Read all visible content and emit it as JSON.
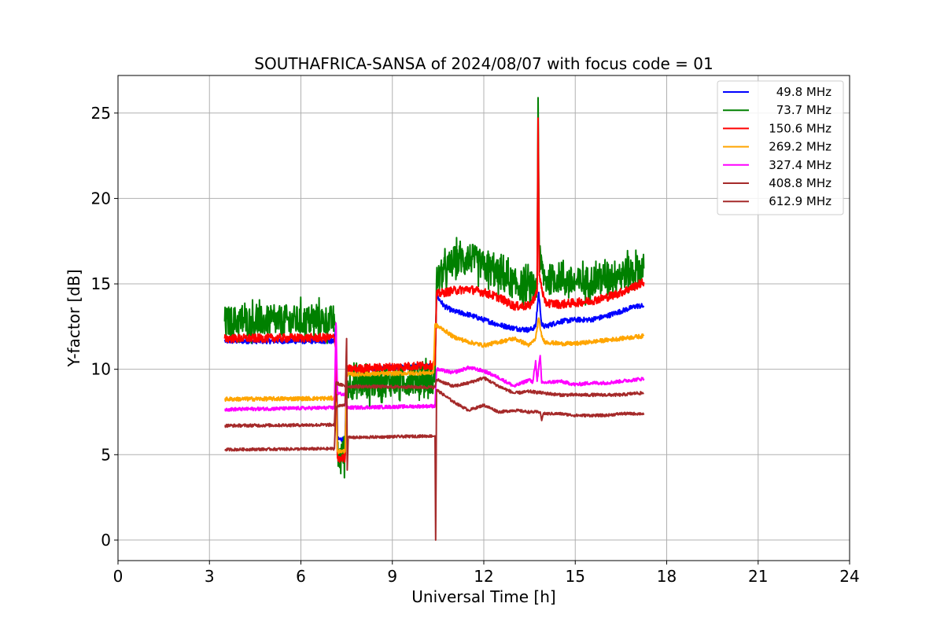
{
  "chart_data": {
    "type": "line",
    "title": "SOUTHAFRICA-SANSA of 2024/08/07 with focus code = 01",
    "xlabel": "Universal Time [h]",
    "ylabel": "Y-factor [dB]",
    "xlim": [
      0,
      24
    ],
    "ylim": [
      -1.2,
      27.2
    ],
    "xticks": [
      0,
      3,
      6,
      9,
      12,
      15,
      18,
      21,
      24
    ],
    "yticks": [
      0,
      5,
      10,
      15,
      20,
      25
    ],
    "grid": true,
    "legend_position": "top-right",
    "series": [
      {
        "name": "49.8 MHz",
        "color": "#0000ff",
        "noise": 0.15,
        "points": [
          [
            3.5,
            11.65
          ],
          [
            7.1,
            11.65
          ],
          [
            7.15,
            12.6
          ],
          [
            7.2,
            5.9
          ],
          [
            7.45,
            5.9
          ],
          [
            7.5,
            10.0
          ],
          [
            10.4,
            10.2
          ],
          [
            10.45,
            14.3
          ],
          [
            10.7,
            13.7
          ],
          [
            11.0,
            13.4
          ],
          [
            11.5,
            13.2
          ],
          [
            12.0,
            12.9
          ],
          [
            12.5,
            12.6
          ],
          [
            13.0,
            12.4
          ],
          [
            13.5,
            12.3
          ],
          [
            13.7,
            12.5
          ],
          [
            13.8,
            14.5
          ],
          [
            13.9,
            12.6
          ],
          [
            14.0,
            12.5
          ],
          [
            14.5,
            12.8
          ],
          [
            15.0,
            12.9
          ],
          [
            15.5,
            12.9
          ],
          [
            16.0,
            13.1
          ],
          [
            16.5,
            13.4
          ],
          [
            17.0,
            13.7
          ],
          [
            17.25,
            13.7
          ]
        ]
      },
      {
        "name": "73.7 MHz",
        "color": "#008000",
        "noise": 0.9,
        "points": [
          [
            3.5,
            12.8
          ],
          [
            7.1,
            12.85
          ],
          [
            7.15,
            12.5
          ],
          [
            7.2,
            4.95
          ],
          [
            7.45,
            4.95
          ],
          [
            7.5,
            9.1
          ],
          [
            10.4,
            9.5
          ],
          [
            10.45,
            15.2
          ],
          [
            11.0,
            16.3
          ],
          [
            11.5,
            16.6
          ],
          [
            12.0,
            16.0
          ],
          [
            12.5,
            15.5
          ],
          [
            13.0,
            15.0
          ],
          [
            13.5,
            14.8
          ],
          [
            13.75,
            15.0
          ],
          [
            13.78,
            25.9
          ],
          [
            13.82,
            16.5
          ],
          [
            14.0,
            15.2
          ],
          [
            14.5,
            15.4
          ],
          [
            15.0,
            15.0
          ],
          [
            15.5,
            15.2
          ],
          [
            16.0,
            15.4
          ],
          [
            16.5,
            15.6
          ],
          [
            17.0,
            15.8
          ],
          [
            17.25,
            15.9
          ]
        ]
      },
      {
        "name": "150.6 MHz",
        "color": "#ff0000",
        "noise": 0.25,
        "points": [
          [
            3.5,
            11.8
          ],
          [
            7.1,
            11.85
          ],
          [
            7.15,
            11.0
          ],
          [
            7.2,
            4.8
          ],
          [
            7.45,
            4.8
          ],
          [
            7.5,
            10.0
          ],
          [
            10.4,
            10.25
          ],
          [
            10.45,
            14.4
          ],
          [
            11.0,
            14.6
          ],
          [
            11.5,
            14.7
          ],
          [
            12.0,
            14.5
          ],
          [
            12.5,
            14.2
          ],
          [
            13.0,
            13.7
          ],
          [
            13.5,
            13.7
          ],
          [
            13.75,
            14.5
          ],
          [
            13.78,
            24.7
          ],
          [
            13.82,
            15.5
          ],
          [
            14.0,
            13.9
          ],
          [
            14.5,
            13.8
          ],
          [
            15.0,
            13.9
          ],
          [
            15.5,
            14.0
          ],
          [
            16.0,
            14.2
          ],
          [
            16.5,
            14.5
          ],
          [
            17.0,
            14.9
          ],
          [
            17.25,
            15.1
          ]
        ]
      },
      {
        "name": "269.2 MHz",
        "color": "#ffa500",
        "noise": 0.12,
        "points": [
          [
            3.5,
            8.25
          ],
          [
            7.1,
            8.3
          ],
          [
            7.15,
            8.0
          ],
          [
            7.2,
            5.2
          ],
          [
            7.45,
            5.2
          ],
          [
            7.5,
            9.7
          ],
          [
            10.35,
            9.8
          ],
          [
            10.4,
            12.6
          ],
          [
            10.7,
            12.3
          ],
          [
            11.0,
            11.9
          ],
          [
            11.5,
            11.6
          ],
          [
            12.0,
            11.4
          ],
          [
            12.5,
            11.6
          ],
          [
            13.0,
            11.8
          ],
          [
            13.5,
            11.4
          ],
          [
            13.7,
            11.8
          ],
          [
            13.8,
            13.0
          ],
          [
            13.9,
            11.9
          ],
          [
            14.0,
            11.6
          ],
          [
            14.5,
            11.5
          ],
          [
            15.0,
            11.5
          ],
          [
            15.5,
            11.6
          ],
          [
            16.0,
            11.7
          ],
          [
            16.5,
            11.8
          ],
          [
            17.0,
            11.9
          ],
          [
            17.25,
            11.95
          ]
        ]
      },
      {
        "name": "327.4 MHz",
        "color": "#ff00ff",
        "noise": 0.1,
        "points": [
          [
            3.5,
            7.65
          ],
          [
            7.1,
            7.75
          ],
          [
            7.15,
            12.7
          ],
          [
            7.2,
            8.6
          ],
          [
            7.45,
            8.5
          ],
          [
            7.5,
            7.75
          ],
          [
            10.4,
            7.85
          ],
          [
            10.45,
            10.0
          ],
          [
            11.0,
            9.8
          ],
          [
            11.5,
            10.1
          ],
          [
            12.0,
            9.9
          ],
          [
            12.5,
            9.5
          ],
          [
            13.0,
            9.0
          ],
          [
            13.5,
            9.4
          ],
          [
            13.6,
            9.2
          ],
          [
            13.7,
            10.5
          ],
          [
            13.75,
            9.3
          ],
          [
            13.85,
            10.8
          ],
          [
            13.9,
            9.2
          ],
          [
            14.5,
            9.3
          ],
          [
            15.0,
            9.1
          ],
          [
            15.5,
            9.2
          ],
          [
            16.0,
            9.2
          ],
          [
            16.5,
            9.3
          ],
          [
            17.0,
            9.4
          ],
          [
            17.25,
            9.45
          ]
        ]
      },
      {
        "name": "408.8 MHz",
        "color": "#a52a2a",
        "noise": 0.09,
        "points": [
          [
            3.5,
            6.7
          ],
          [
            7.1,
            6.75
          ],
          [
            7.15,
            9.2
          ],
          [
            7.45,
            9.0
          ],
          [
            7.5,
            9.0
          ],
          [
            10.4,
            8.95
          ],
          [
            10.45,
            9.4
          ],
          [
            11.0,
            9.0
          ],
          [
            11.5,
            9.2
          ],
          [
            12.0,
            9.5
          ],
          [
            12.5,
            9.0
          ],
          [
            13.0,
            8.6
          ],
          [
            13.5,
            8.7
          ],
          [
            14.0,
            8.6
          ],
          [
            14.5,
            8.5
          ],
          [
            15.0,
            8.5
          ],
          [
            15.5,
            8.5
          ],
          [
            16.0,
            8.5
          ],
          [
            16.5,
            8.5
          ],
          [
            17.0,
            8.6
          ],
          [
            17.25,
            8.6
          ]
        ]
      },
      {
        "name": "612.9 MHz",
        "color": "#a52a2a",
        "noise": 0.08,
        "points": [
          [
            3.5,
            5.3
          ],
          [
            7.1,
            5.35
          ],
          [
            7.15,
            7.8
          ],
          [
            7.45,
            7.95
          ],
          [
            7.5,
            11.8
          ],
          [
            7.52,
            4.1
          ],
          [
            7.55,
            6.0
          ],
          [
            10.4,
            6.1
          ],
          [
            10.42,
            0.0
          ],
          [
            10.45,
            8.8
          ],
          [
            11.0,
            8.1
          ],
          [
            11.5,
            7.6
          ],
          [
            12.0,
            7.9
          ],
          [
            12.5,
            7.5
          ],
          [
            13.0,
            7.6
          ],
          [
            13.5,
            7.5
          ],
          [
            13.85,
            7.5
          ],
          [
            13.9,
            7.0
          ],
          [
            13.95,
            7.4
          ],
          [
            14.5,
            7.4
          ],
          [
            15.0,
            7.3
          ],
          [
            15.5,
            7.3
          ],
          [
            16.0,
            7.3
          ],
          [
            16.5,
            7.4
          ],
          [
            17.0,
            7.4
          ],
          [
            17.25,
            7.4
          ]
        ]
      }
    ]
  }
}
